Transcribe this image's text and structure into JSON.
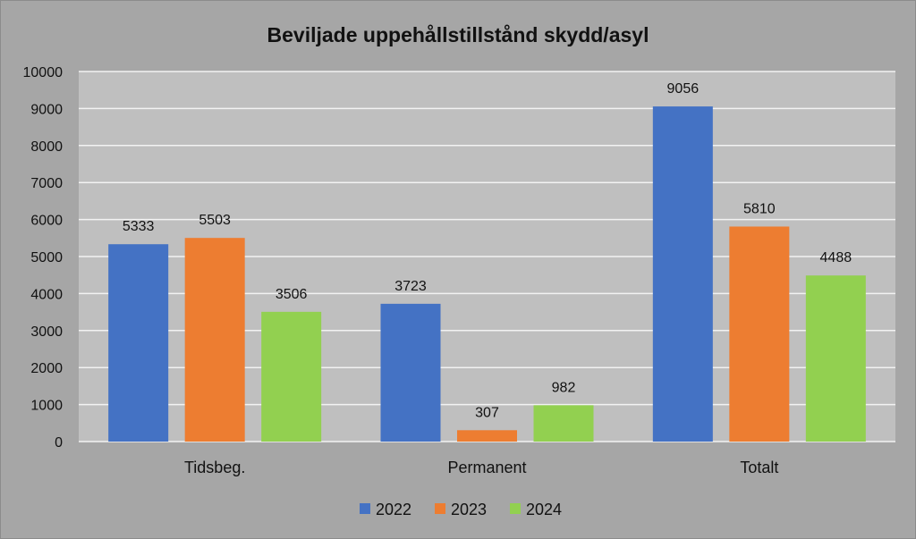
{
  "chart_data": {
    "type": "bar",
    "title": "Beviljade uppehållstillstånd skydd/asyl",
    "xlabel": "",
    "ylabel": "",
    "categories": [
      "Tidsbeg.",
      "Permanent",
      "Totalt"
    ],
    "series": [
      {
        "name": "2022",
        "color": "#4472c4",
        "values": [
          5333,
          3723,
          9056
        ]
      },
      {
        "name": "2023",
        "color": "#ed7d31",
        "values": [
          5503,
          307,
          5810
        ]
      },
      {
        "name": "2024",
        "color": "#92d050",
        "values": [
          3506,
          982,
          4488
        ]
      }
    ],
    "ylim": [
      0,
      10000
    ],
    "yticks": [
      "0",
      "1000",
      "2000",
      "3000",
      "4000",
      "5000",
      "6000",
      "7000",
      "8000",
      "9000",
      "10000"
    ],
    "grid": true,
    "legend": "bottom",
    "data_labels": true,
    "colors": {
      "chart_background": "#a6a6a6",
      "plot_background": "#bfbfbf",
      "gridline": "#f2f2f2"
    }
  }
}
